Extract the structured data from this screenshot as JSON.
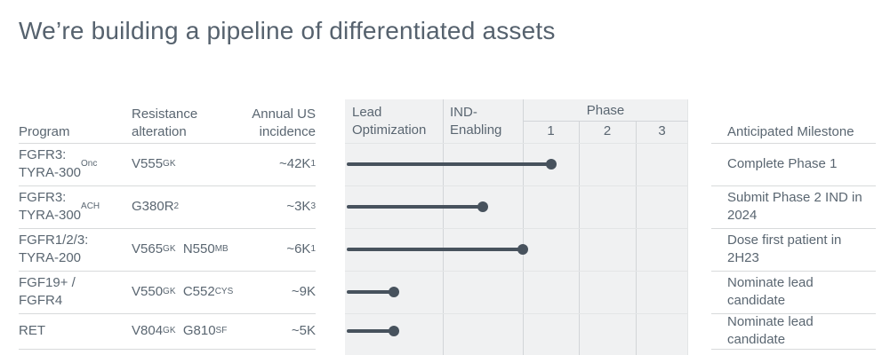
{
  "title": "We’re building a pipeline of differentiated assets",
  "columns": {
    "program": "Program",
    "resistance_line1": "Resistance",
    "resistance_line2": "alteration",
    "incidence_line1": "Annual US",
    "incidence_line2": "incidence",
    "milestone": "Anticipated Milestone"
  },
  "stage_header": {
    "lead_line1": "Lead",
    "lead_line2": "Optimization",
    "ind_line1": "IND-",
    "ind_line2": "Enabling",
    "phase": "Phase",
    "phase_cols": [
      "1",
      "2",
      "3"
    ]
  },
  "rows": [
    {
      "program": [
        {
          "text": "FGFR3:"
        },
        {
          "br": true
        },
        {
          "text": "TYRA-300"
        },
        {
          "text": "Onc",
          "sup": true
        }
      ],
      "resistance": [
        {
          "text": "V555"
        },
        {
          "text": "GK",
          "sup": true
        }
      ],
      "incidence": [
        {
          "text": "~42K"
        },
        {
          "text": "1",
          "sup": true
        }
      ],
      "milestone": "Complete Phase 1",
      "progress": 2.5
    },
    {
      "program": [
        {
          "text": "FGFR3:"
        },
        {
          "br": true
        },
        {
          "text": "TYRA-300"
        },
        {
          "text": "ACH",
          "sup": true
        }
      ],
      "resistance": [
        {
          "text": "G380R"
        },
        {
          "text": "2",
          "sup": true
        }
      ],
      "incidence": [
        {
          "text": "~3K"
        },
        {
          "text": "3",
          "sup": true
        }
      ],
      "milestone": "Submit Phase 2 IND in 2024",
      "progress": 1.5
    },
    {
      "program": [
        {
          "text": "FGFR1/2/3:"
        },
        {
          "br": true
        },
        {
          "text": "TYRA-200"
        }
      ],
      "resistance": [
        {
          "text": "V565"
        },
        {
          "text": "GK",
          "sup": true
        },
        {
          "text": "  N550"
        },
        {
          "text": "MB",
          "sup": true
        }
      ],
      "incidence": [
        {
          "text": "~6K"
        },
        {
          "text": "1",
          "sup": true
        }
      ],
      "milestone": "Dose first patient in 2H23",
      "progress": 2.0
    },
    {
      "program": [
        {
          "text": "FGF19+ /"
        },
        {
          "br": true
        },
        {
          "text": "FGFR4"
        }
      ],
      "resistance": [
        {
          "text": "V550"
        },
        {
          "text": "GK",
          "sup": true
        },
        {
          "text": "  C552"
        },
        {
          "text": "CYS",
          "sup": true
        }
      ],
      "incidence": [
        {
          "text": "~9K"
        }
      ],
      "milestone": "Nominate lead candidate",
      "progress": 0.5
    },
    {
      "program": [
        {
          "text": "RET"
        }
      ],
      "resistance": [
        {
          "text": "V804"
        },
        {
          "text": "GK",
          "sup": true
        },
        {
          "text": "  G810"
        },
        {
          "text": "SF",
          "sup": true
        }
      ],
      "incidence": [
        {
          "text": "~5K"
        }
      ],
      "milestone": "Nominate lead candidate",
      "progress": 0.5
    }
  ],
  "chart_data": {
    "type": "bar",
    "title": "Pipeline stage progression (lollipop Gantt)",
    "categories": [
      "FGFR3: TYRA-300 Onc",
      "FGFR3: TYRA-300 ACH",
      "FGFR1/2/3: TYRA-200",
      "FGF19+ / FGFR4",
      "RET"
    ],
    "stages": [
      "Lead Optimization",
      "IND-Enabling",
      "Phase 1",
      "Phase 2",
      "Phase 3"
    ],
    "values": [
      2.5,
      1.5,
      2.0,
      0.5,
      0.5
    ],
    "value_scale": "stages completed; each stage column = 1 unit, range 0-5",
    "annotations": [
      "Complete Phase 1",
      "Submit Phase 2 IND in 2024",
      "Dose first patient in 2H23",
      "Nominate lead candidate",
      "Nominate lead candidate"
    ],
    "grid": true,
    "legend": false
  },
  "colors": {
    "title_text": "#56626e",
    "body_text": "#5a6671",
    "bar": "#47525d",
    "chart_bg": "#f0f1f2",
    "grid_vertical": "#d2d5d8",
    "grid_horizontal": "#e3e5e6",
    "separator": "#d8dadb"
  }
}
